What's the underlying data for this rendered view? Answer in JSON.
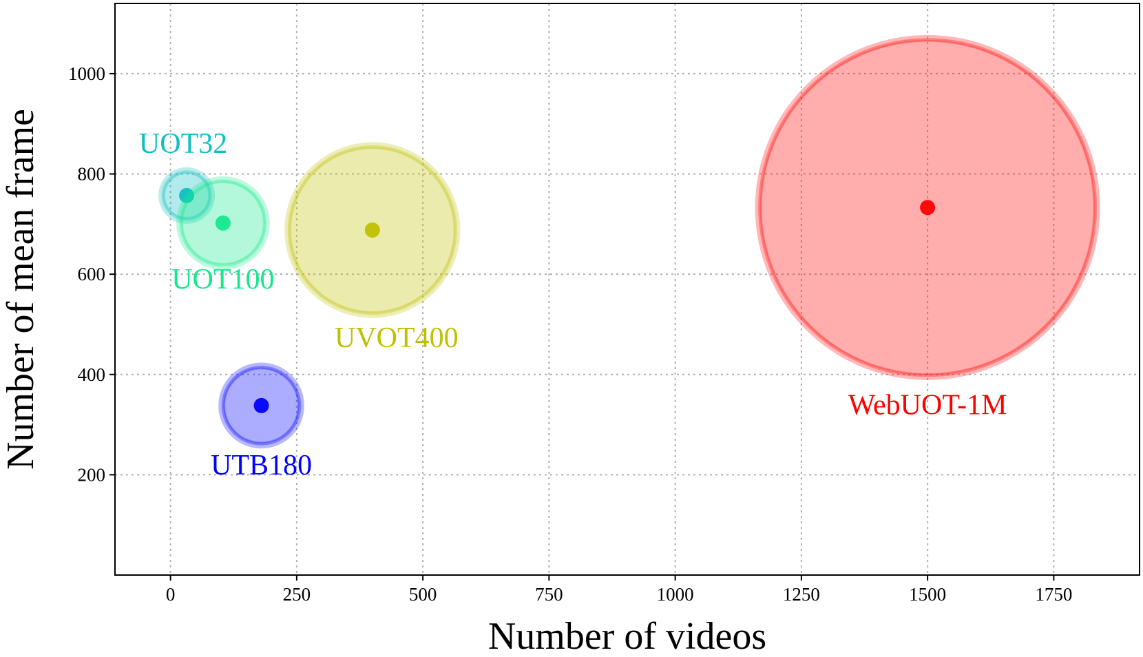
{
  "chart_data": {
    "type": "scatter",
    "title": "",
    "xlabel": "Number of videos",
    "ylabel": "Number of mean frame",
    "xlim": [
      -110,
      1920
    ],
    "ylim": [
      0,
      1140
    ],
    "xticks": [
      0,
      250,
      500,
      750,
      1000,
      1250,
      1500,
      1750
    ],
    "yticks": [
      200,
      400,
      600,
      800,
      1000
    ],
    "grid": true,
    "points": [
      {
        "label": "UOT32",
        "x": 32,
        "y": 757,
        "color": "#10c0c0"
      },
      {
        "label": "UOT100",
        "x": 104,
        "y": 702,
        "color": "#14e88c"
      },
      {
        "label": "UVOT400",
        "x": 400,
        "y": 688,
        "color": "#c0c000"
      },
      {
        "label": "UTB180",
        "x": 180,
        "y": 338,
        "color": "#0000ff"
      },
      {
        "label": "WebUOT-1M",
        "x": 1500,
        "y": 733,
        "color": "#ff0000"
      }
    ]
  }
}
